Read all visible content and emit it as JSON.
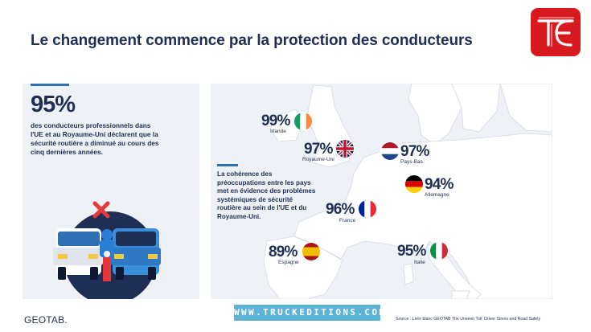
{
  "header": {
    "title": "Le changement commence par la protection des conducteurs"
  },
  "left_panel": {
    "stat": "95%",
    "description": "des conducteurs professionnels dans l'UE et au Royaume-Uni déclarent que la sécurité routière a diminué au cours des cinq dernières années."
  },
  "map_panel": {
    "callout": "La cohérence des préoccupations entre les pays met en évidence des problèmes systémiques de sécurité routière au sein de l'UE et du Royaume-Uni.",
    "countries": [
      {
        "name": "Irlande",
        "stat": "99%",
        "flag": "irlande-flag"
      },
      {
        "name": "Royaume-Uni",
        "stat": "97%",
        "flag": "uk-flag"
      },
      {
        "name": "Pays-Bas",
        "stat": "97%",
        "flag": "netherlands-flag"
      },
      {
        "name": "Allemagne",
        "stat": "94%",
        "flag": "germany-flag"
      },
      {
        "name": "France",
        "stat": "96%",
        "flag": "france-flag"
      },
      {
        "name": "Espagne",
        "stat": "89%",
        "flag": "spain-flag"
      },
      {
        "name": "Italie",
        "stat": "95%",
        "flag": "italy-flag"
      }
    ]
  },
  "footer": {
    "brand": "GEOTAB.",
    "watermark": "WWW.TRUCKEDITIONS.COM",
    "source": "Source : Livre blanc GEOTAB The Unseen Toll: Driver Stress and Road Safety"
  },
  "colors": {
    "primary_text": "#1e2f55",
    "accent_blue": "#2f6fb3",
    "panel_bg": "#eef1f6",
    "logo_red": "#d8191f",
    "watermark_bg": "#5bb3d8"
  }
}
